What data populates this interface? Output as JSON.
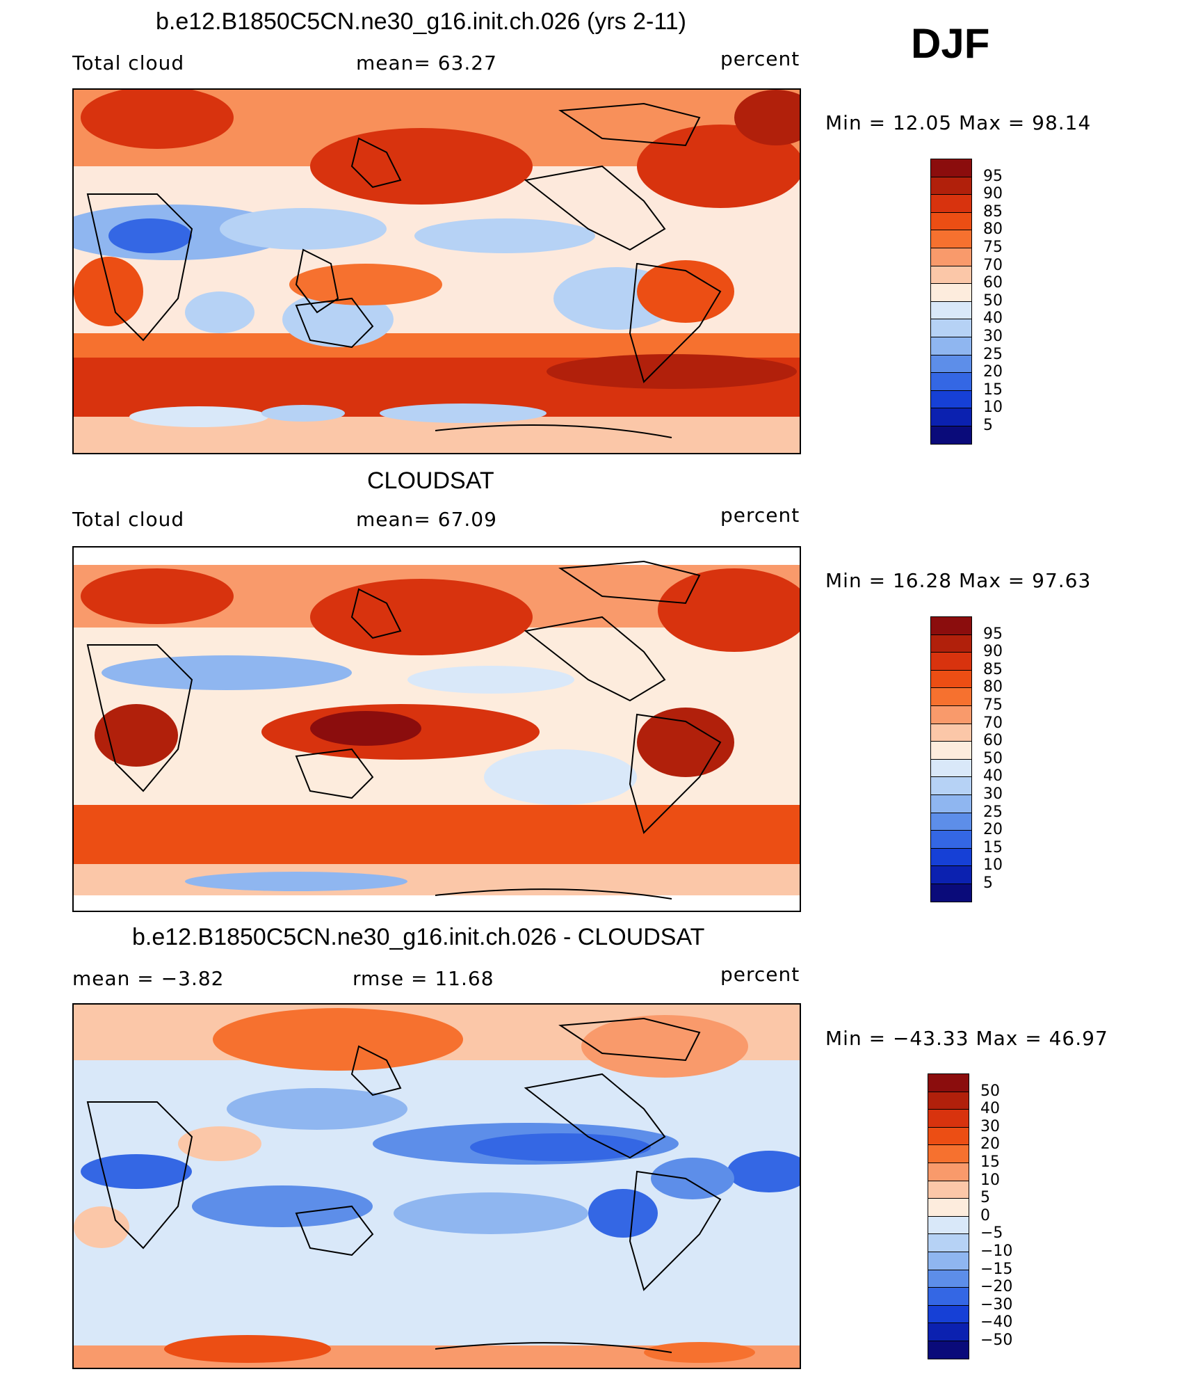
{
  "season": "DJF",
  "panels": [
    {
      "title": "b.e12.B1850C5CN.ne30_g16.init.ch.026 (yrs 2-11)",
      "left_label": "Total cloud",
      "center_label": "mean=  63.27",
      "right_label": "percent",
      "range_text": "Min =   12.05 Max =   98.14",
      "colorbar_labels": [
        "95",
        "90",
        "85",
        "80",
        "75",
        "70",
        "60",
        "50",
        "40",
        "30",
        "25",
        "20",
        "15",
        "10",
        "5"
      ],
      "colorbar_colors": [
        "#8b0d0d",
        "#b1200b",
        "#d8330e",
        "#ec4e14",
        "#f6712f",
        "#f99a6b",
        "#fbc7a8",
        "#fdecdd",
        "#d9e8f9",
        "#b6d2f5",
        "#8fb6f0",
        "#5d8ee9",
        "#3467e4",
        "#1640d6",
        "#0b21b0",
        "#0a0b7a"
      ]
    },
    {
      "title": "CLOUDSAT",
      "left_label": "Total cloud",
      "center_label": "mean=  67.09",
      "right_label": "percent",
      "range_text": "Min =   16.28 Max =   97.63",
      "colorbar_labels": [
        "95",
        "90",
        "85",
        "80",
        "75",
        "70",
        "60",
        "50",
        "40",
        "30",
        "25",
        "20",
        "15",
        "10",
        "5"
      ],
      "colorbar_colors": [
        "#8b0d0d",
        "#b1200b",
        "#d8330e",
        "#ec4e14",
        "#f6712f",
        "#f99a6b",
        "#fbc7a8",
        "#fdecdd",
        "#d9e8f9",
        "#b6d2f5",
        "#8fb6f0",
        "#5d8ee9",
        "#3467e4",
        "#1640d6",
        "#0b21b0",
        "#0a0b7a"
      ]
    },
    {
      "title": "b.e12.B1850C5CN.ne30_g16.init.ch.026 - CLOUDSAT",
      "left_label": "mean =   −3.82",
      "center_label": "rmse =   11.68",
      "right_label": "percent",
      "range_text": "Min = −43.33 Max =   46.97",
      "colorbar_labels": [
        "50",
        "40",
        "30",
        "20",
        "15",
        "10",
        "5",
        "0",
        "−5",
        "−10",
        "−15",
        "−20",
        "−30",
        "−40",
        "−50"
      ],
      "colorbar_colors": [
        "#8b0d0d",
        "#b1200b",
        "#d8330e",
        "#ec4e14",
        "#f6712f",
        "#f99a6b",
        "#fbc7a8",
        "#fdecdd",
        "#d9e8f9",
        "#b6d2f5",
        "#8fb6f0",
        "#5d8ee9",
        "#3467e4",
        "#1640d6",
        "#0b21b0",
        "#0a0b7a"
      ]
    }
  ]
}
